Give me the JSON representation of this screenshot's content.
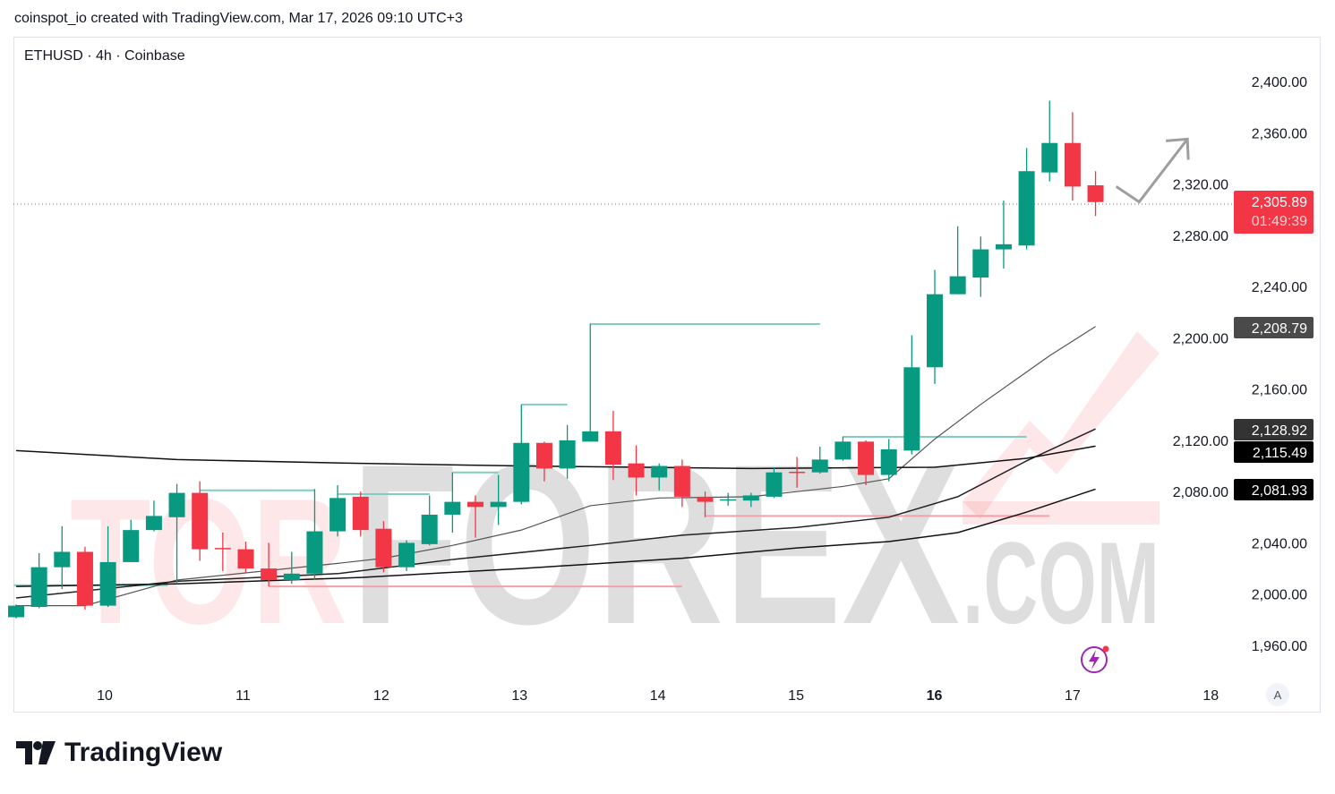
{
  "header": {
    "text": "coinspot_io created with TradingView.com, Mar 17, 2026 09:10 UTC+3"
  },
  "symbol": {
    "label": "ETHUSD · 4h · Coinbase"
  },
  "branding": {
    "name": "TradingView",
    "auto_label": "A"
  },
  "watermark": {
    "text": [
      "TOR",
      "FOREX",
      ".COM"
    ]
  },
  "colors": {
    "up": "#089981",
    "down": "#f23645",
    "level_up": "#7fcfbf",
    "level_down": "#f5a0a8"
  },
  "chart_data": {
    "type": "candlestick",
    "symbol": "ETHUSD",
    "interval": "4h",
    "exchange": "Coinbase",
    "ylim": [
      1940,
      2420
    ],
    "yticks": [
      "2,400.00",
      "2,360.00",
      "2,320.00",
      "2,280.00",
      "2,240.00",
      "2,200.00",
      "2,160.00",
      "2,120.00",
      "2,080.00",
      "2,040.00",
      "2,000.00",
      "1,960.00"
    ],
    "ytick_values": [
      2400,
      2360,
      2320,
      2280,
      2240,
      2200,
      2160,
      2120,
      2080,
      2040,
      2000,
      1960
    ],
    "xticks": [
      {
        "label": "10",
        "index": 3.86,
        "bold": false
      },
      {
        "label": "11",
        "index": 9.88,
        "bold": false
      },
      {
        "label": "12",
        "index": 15.9,
        "bold": false
      },
      {
        "label": "13",
        "index": 21.92,
        "bold": false
      },
      {
        "label": "14",
        "index": 27.94,
        "bold": false
      },
      {
        "label": "15",
        "index": 33.96,
        "bold": false
      },
      {
        "label": "16",
        "index": 39.98,
        "bold": true
      },
      {
        "label": "17",
        "index": 46.0,
        "bold": false
      },
      {
        "label": "18",
        "index": 52.02,
        "bold": false
      }
    ],
    "candles": [
      [
        1982,
        1992,
        1981,
        1991
      ],
      [
        1990,
        2032,
        1989,
        2021
      ],
      [
        2021,
        2053,
        2004,
        2033
      ],
      [
        2033,
        2037,
        1988,
        1991
      ],
      [
        1991,
        2053,
        1990,
        2025
      ],
      [
        2025,
        2058,
        2025,
        2050
      ],
      [
        2050,
        2073,
        2049,
        2061
      ],
      [
        2060,
        2086,
        2008,
        2079
      ],
      [
        2079,
        2088,
        2026,
        2035
      ],
      [
        2036,
        2048,
        2018,
        2035
      ],
      [
        2035,
        2041,
        2017,
        2020
      ],
      [
        2020,
        2040,
        2006,
        2011
      ],
      [
        2011,
        2033,
        2008,
        2016
      ],
      [
        2016,
        2082,
        2011,
        2049
      ],
      [
        2049,
        2085,
        2045,
        2075
      ],
      [
        2076,
        2080,
        2045,
        2050
      ],
      [
        2051,
        2057,
        2017,
        2021
      ],
      [
        2021,
        2042,
        2018,
        2040
      ],
      [
        2039,
        2077,
        2038,
        2062
      ],
      [
        2062,
        2095,
        2048,
        2072
      ],
      [
        2072,
        2077,
        2044,
        2068
      ],
      [
        2068,
        2093,
        2054,
        2072
      ],
      [
        2072,
        2148,
        2070,
        2118
      ],
      [
        2118,
        2119,
        2088,
        2098
      ],
      [
        2098,
        2132,
        2090,
        2120
      ],
      [
        2119,
        2211,
        2119,
        2127
      ],
      [
        2127,
        2143,
        2089,
        2101
      ],
      [
        2102,
        2116,
        2077,
        2091
      ],
      [
        2091,
        2102,
        2081,
        2100
      ],
      [
        2100,
        2105,
        2068,
        2076
      ],
      [
        2076,
        2080,
        2060,
        2072
      ],
      [
        2073,
        2079,
        2069,
        2074
      ],
      [
        2073,
        2079,
        2068,
        2077
      ],
      [
        2076,
        2099,
        2075,
        2095
      ],
      [
        2095.5,
        2107,
        2083,
        2095
      ],
      [
        2095,
        2115,
        2094,
        2105
      ],
      [
        2105,
        2123,
        2104,
        2119
      ],
      [
        2119,
        2120,
        2085,
        2093
      ],
      [
        2093,
        2121,
        2088,
        2113
      ],
      [
        2112,
        2202,
        2109,
        2177
      ],
      [
        2177,
        2253,
        2164,
        2234
      ],
      [
        2234,
        2287,
        2234,
        2248
      ],
      [
        2247,
        2279,
        2232,
        2269
      ],
      [
        2269,
        2307,
        2254,
        2273
      ],
      [
        2272,
        2348,
        2269,
        2330
      ],
      [
        2329,
        2385,
        2322,
        2352
      ],
      [
        2352,
        2376,
        2307,
        2318
      ],
      [
        2319,
        2330,
        2295,
        2305.89
      ]
    ],
    "ohlc_order": [
      "open",
      "high",
      "low",
      "close"
    ],
    "moving_averages": [
      {
        "name": "MA1",
        "color": "#555555",
        "last_label": "2,208.79",
        "badge": "#4a4a4a",
        "points": [
          [
            0,
            1991
          ],
          [
            3,
            1991
          ],
          [
            7,
            2011
          ],
          [
            14,
            2024
          ],
          [
            16,
            2028
          ],
          [
            19,
            2038
          ],
          [
            22,
            2050
          ],
          [
            25,
            2069
          ],
          [
            28,
            2075
          ],
          [
            32,
            2076
          ],
          [
            36,
            2084
          ],
          [
            38,
            2090
          ],
          [
            40,
            2121
          ],
          [
            42,
            2148
          ],
          [
            45,
            2186
          ],
          [
            47,
            2208.79
          ]
        ]
      },
      {
        "name": "MA2",
        "color": "#222222",
        "last_label": "2,128.92",
        "badge": "#333333",
        "points": [
          [
            0,
            1997
          ],
          [
            7,
            2010
          ],
          [
            14,
            2016
          ],
          [
            19,
            2027
          ],
          [
            25,
            2038
          ],
          [
            29,
            2046
          ],
          [
            34,
            2052
          ],
          [
            38,
            2060
          ],
          [
            41,
            2076
          ],
          [
            44,
            2104
          ],
          [
            47,
            2128.92
          ]
        ]
      },
      {
        "name": "MA3",
        "color": "#111111",
        "last_label": "2,115.49",
        "badge": "#000000",
        "points": [
          [
            0,
            2112
          ],
          [
            7,
            2105
          ],
          [
            15,
            2102
          ],
          [
            22,
            2100
          ],
          [
            32,
            2098
          ],
          [
            40,
            2099
          ],
          [
            44,
            2106
          ],
          [
            47,
            2115.49
          ]
        ]
      },
      {
        "name": "MA4",
        "color": "#111111",
        "last_label": "2,081.93",
        "badge": "#000000",
        "points": [
          [
            0,
            2006
          ],
          [
            7,
            2008
          ],
          [
            15,
            2013
          ],
          [
            22,
            2020
          ],
          [
            29,
            2028
          ],
          [
            34,
            2036
          ],
          [
            38,
            2041
          ],
          [
            41,
            2048
          ],
          [
            44,
            2064
          ],
          [
            47,
            2081.93
          ]
        ]
      }
    ],
    "levels": [
      {
        "price": 2007,
        "from": -0.1,
        "to": 6.6,
        "kind": "up"
      },
      {
        "price": 2081,
        "from": 8,
        "to": 13,
        "kind": "up"
      },
      {
        "price": 2078,
        "from": 14,
        "to": 18,
        "kind": "up"
      },
      {
        "price": 2095,
        "from": 19,
        "to": 21,
        "kind": "up"
      },
      {
        "price": 2148,
        "from": 22,
        "to": 24,
        "kind": "up"
      },
      {
        "price": 2210.7,
        "from": 25,
        "to": 35,
        "kind": "up"
      },
      {
        "price": 2122.7,
        "from": 36,
        "to": 44,
        "kind": "up"
      },
      {
        "price": 2006,
        "from": 11,
        "to": 29,
        "kind": "down"
      },
      {
        "price": 2061,
        "from": 30,
        "to": 45,
        "kind": "down"
      }
    ],
    "projection_arrow": [
      [
        47.9,
        2318
      ],
      [
        48.9,
        2306
      ],
      [
        51.0,
        2355
      ]
    ],
    "last_price": {
      "label": "2,305.89",
      "value": 2305.89,
      "countdown": "01:49:39"
    }
  }
}
